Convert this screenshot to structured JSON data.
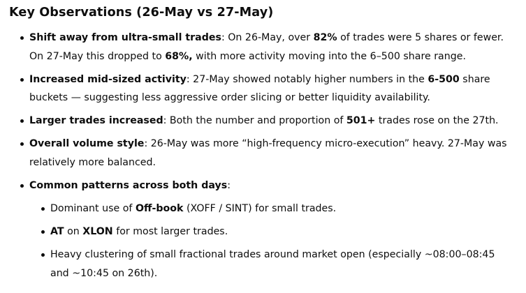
{
  "heading": "Key Observations (26-May vs 27-May)",
  "items": [
    {
      "bold": "Shift away from ultra-small trades",
      "t1": ": On 26-May, over ",
      "b1": "82%",
      "t2": " of trades were 5 shares or fewer. On 27-May this dropped to ",
      "b2": "68%,",
      "t3": " with more activity moving into the 6–500 share range."
    },
    {
      "bold": "Increased mid-sized activity",
      "t1": ": 27-May showed notably higher numbers in the ",
      "b1": "6-500",
      "t2": " share buckets — suggesting less aggressive order slicing or better liquidity availability."
    },
    {
      "bold": "Larger trades increased",
      "t1": ": Both the number and proportion of ",
      "b1": "501+",
      "t2": " trades rose on the 27th."
    },
    {
      "bold": "Overall volume style",
      "t1": ": 26-May was more “high-frequency micro-execution” heavy. 27-May was relatively more balanced."
    },
    {
      "bold": "Common patterns across both days",
      "t1": ":"
    }
  ],
  "subitems": [
    {
      "t1": "Dominant use of ",
      "b1": "Off-book",
      "t2": " (XOFF / SINT) for small trades."
    },
    {
      "b1": "AT",
      "t1": " on ",
      "b2": "XLON",
      "t2": " for most larger trades."
    },
    {
      "t1": "Heavy clustering of small fractional trades around market open (especially ~08:00–08:45 and ~10:45 on 26th)."
    }
  ]
}
